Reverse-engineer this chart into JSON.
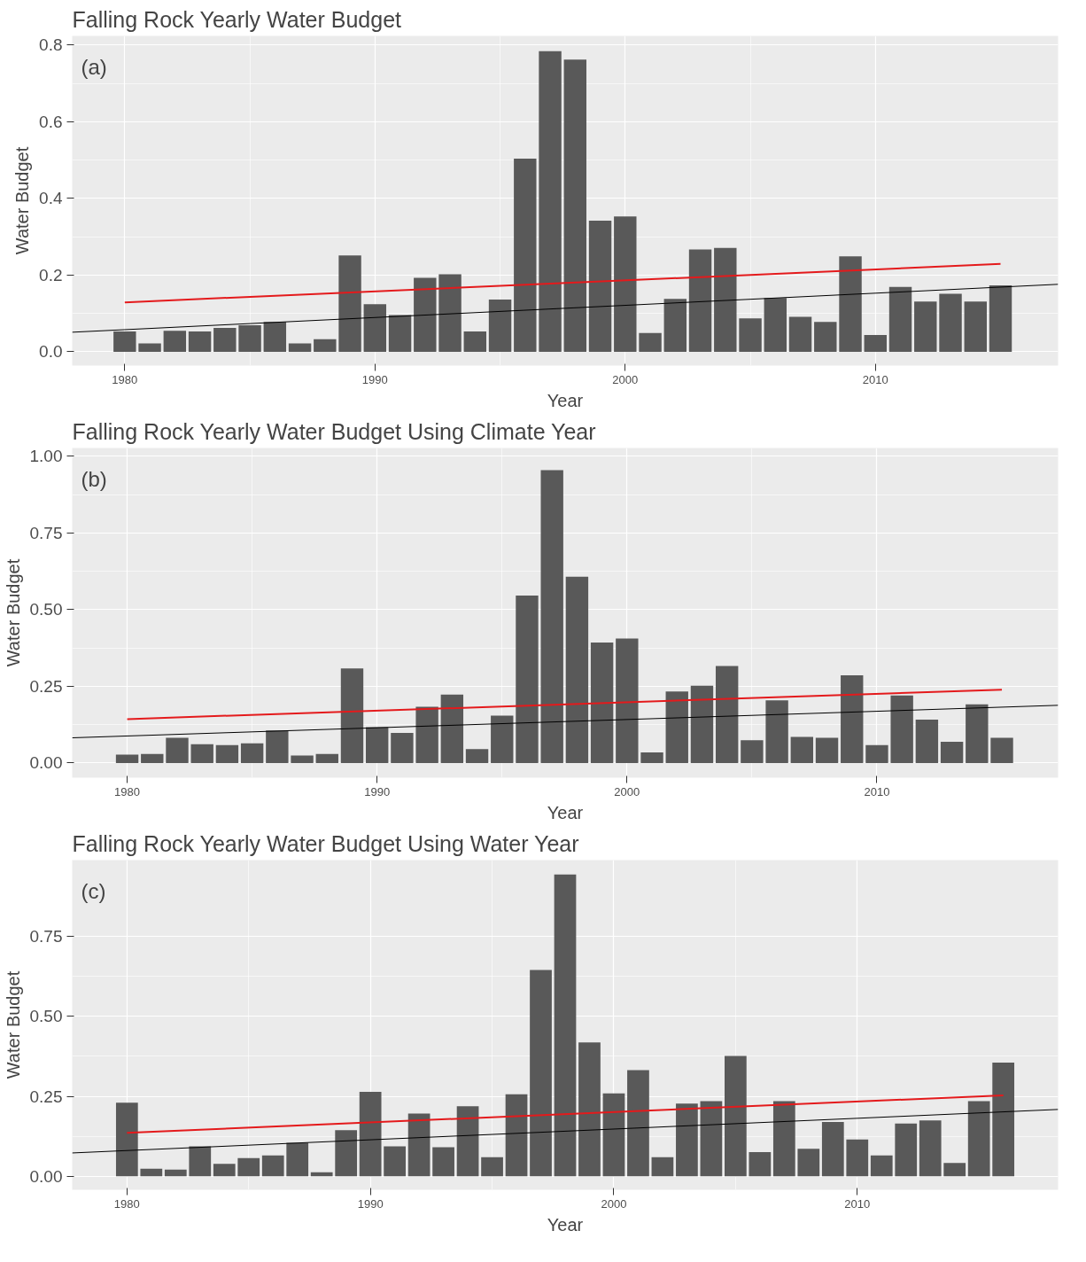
{
  "chart_data": [
    {
      "type": "bar",
      "title": "Falling Rock Yearly Water Budget",
      "xlabel": "Year",
      "ylabel": "Water Budget",
      "annotations": [
        "(a)"
      ],
      "x": [
        1980,
        1981,
        1982,
        1983,
        1984,
        1985,
        1986,
        1987,
        1988,
        1989,
        1990,
        1991,
        1992,
        1993,
        1994,
        1995,
        1996,
        1997,
        1998,
        1999,
        2000,
        2001,
        2002,
        2003,
        2004,
        2005,
        2006,
        2007,
        2008,
        2009,
        2010,
        2011,
        2012,
        2013,
        2014,
        2015
      ],
      "series": [
        {
          "color": "#595959",
          "values": [
            0.053,
            0.022,
            0.055,
            0.053,
            0.062,
            0.069,
            0.078,
            0.022,
            0.033,
            0.251,
            0.124,
            0.096,
            0.193,
            0.202,
            0.053,
            0.136,
            0.504,
            0.784,
            0.762,
            0.342,
            0.353,
            0.049,
            0.138,
            0.267,
            0.271,
            0.087,
            0.14,
            0.091,
            0.078,
            0.249,
            0.044,
            0.169,
            0.131,
            0.151,
            0.131,
            0.173
          ]
        },
        {
          "type": "line",
          "color": "#e41a1c",
          "x": [
            1980,
            2015
          ],
          "values": [
            0.129,
            0.229
          ]
        },
        {
          "type": "line",
          "color": "#000000",
          "x": [
            1977.9,
            2017.3
          ],
          "values": [
            0.051,
            0.176
          ]
        }
      ],
      "xlim": [
        1977.9,
        2017.3
      ],
      "ylim": [
        -0.036,
        0.824
      ],
      "xticks": [
        1980,
        1990,
        2000,
        2010
      ],
      "yticks": [
        {
          "value": 0,
          "label": "0.0"
        },
        {
          "value": 0.2,
          "label": "0.2"
        },
        {
          "value": 0.4,
          "label": "0.4"
        },
        {
          "value": 0.6,
          "label": "0.6"
        },
        {
          "value": 0.8,
          "label": "0.8"
        }
      ],
      "grid": true
    },
    {
      "type": "bar",
      "title": "Falling Rock Yearly Water Budget Using Climate Year",
      "xlabel": "Year",
      "ylabel": "Water Budget",
      "annotations": [
        "(b)"
      ],
      "x": [
        1980,
        1981,
        1982,
        1983,
        1984,
        1985,
        1986,
        1987,
        1988,
        1989,
        1990,
        1991,
        1992,
        1993,
        1994,
        1995,
        1996,
        1997,
        1998,
        1999,
        2000,
        2001,
        2002,
        2003,
        2004,
        2005,
        2006,
        2007,
        2008,
        2009,
        2010,
        2011,
        2012,
        2013,
        2014,
        2015
      ],
      "series": [
        {
          "color": "#595959",
          "values": [
            0.027,
            0.029,
            0.082,
            0.061,
            0.058,
            0.064,
            0.106,
            0.024,
            0.029,
            0.308,
            0.117,
            0.098,
            0.183,
            0.223,
            0.045,
            0.154,
            0.546,
            0.955,
            0.607,
            0.393,
            0.406,
            0.034,
            0.233,
            0.252,
            0.316,
            0.074,
            0.204,
            0.085,
            0.082,
            0.286,
            0.058,
            0.22,
            0.141,
            0.069,
            0.191,
            0.082
          ]
        },
        {
          "type": "line",
          "color": "#e41a1c",
          "x": [
            1980,
            2015
          ],
          "values": [
            0.143,
            0.239
          ]
        },
        {
          "type": "line",
          "color": "#000000",
          "x": [
            1977.8,
            2017.25
          ],
          "values": [
            0.082,
            0.188
          ]
        }
      ],
      "xlim": [
        1977.8,
        2017.25
      ],
      "ylim": [
        -0.048,
        1.027
      ],
      "xticks": [
        1980,
        1990,
        2000,
        2010
      ],
      "yticks": [
        {
          "value": 0,
          "label": "0.00"
        },
        {
          "value": 0.25,
          "label": "0.25"
        },
        {
          "value": 0.5,
          "label": "0.50"
        },
        {
          "value": 0.75,
          "label": "0.75"
        },
        {
          "value": 1,
          "label": "1.00"
        }
      ],
      "grid": true
    },
    {
      "type": "bar",
      "title": "Falling Rock Yearly Water Budget Using Water Year",
      "xlabel": "Year",
      "ylabel": "Water Budget",
      "annotations": [
        "(c)"
      ],
      "x": [
        1980,
        1981,
        1982,
        1983,
        1984,
        1985,
        1986,
        1987,
        1988,
        1989,
        1990,
        1991,
        1992,
        1993,
        1994,
        1995,
        1996,
        1997,
        1998,
        1999,
        2000,
        2001,
        2002,
        2003,
        2004,
        2005,
        2006,
        2007,
        2008,
        2009,
        2010,
        2011,
        2012,
        2013,
        2014,
        2015,
        2016
      ],
      "series": [
        {
          "color": "#595959",
          "values": [
            0.23,
            0.024,
            0.021,
            0.094,
            0.039,
            0.057,
            0.065,
            0.105,
            0.013,
            0.144,
            0.264,
            0.094,
            0.196,
            0.091,
            0.219,
            0.06,
            0.256,
            0.645,
            0.943,
            0.418,
            0.259,
            0.332,
            0.06,
            0.227,
            0.235,
            0.376,
            0.076,
            0.235,
            0.086,
            0.17,
            0.115,
            0.065,
            0.165,
            0.175,
            0.042,
            0.235,
            0.355
          ]
        },
        {
          "type": "line",
          "color": "#e41a1c",
          "x": [
            1980,
            2016
          ],
          "values": [
            0.136,
            0.253
          ]
        },
        {
          "type": "line",
          "color": "#000000",
          "x": [
            1977.75,
            2018.25
          ],
          "values": [
            0.073,
            0.209
          ]
        }
      ],
      "xlim": [
        1977.75,
        2018.25
      ],
      "ylim": [
        -0.042,
        0.988
      ],
      "xticks": [
        1980,
        1990,
        2000,
        2010
      ],
      "yticks": [
        {
          "value": 0,
          "label": "0.00"
        },
        {
          "value": 0.25,
          "label": "0.25"
        },
        {
          "value": 0.5,
          "label": "0.50"
        },
        {
          "value": 0.75,
          "label": "0.75"
        }
      ],
      "grid": true
    }
  ]
}
